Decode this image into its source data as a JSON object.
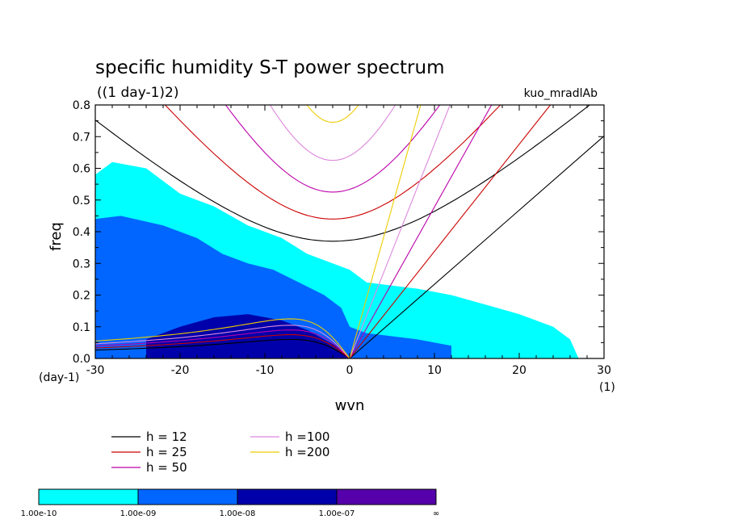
{
  "chart_data": {
    "type": "heatmap",
    "title": "specific humidity S-T power spectrum",
    "subtitle": "((1 day-1)2)",
    "tag": "kuo_mradlAb",
    "xlabel": "wvn",
    "ylabel": "freq",
    "x_unit": "(1)",
    "y_unit": "(day-1)",
    "xlim": [
      -30,
      30
    ],
    "ylim": [
      0,
      0.8
    ],
    "xticks": [
      "-30",
      "-20",
      "-10",
      "0",
      "10",
      "20",
      "30"
    ],
    "yticks": [
      "0.0",
      "0.1",
      "0.2",
      "0.3",
      "0.4",
      "0.5",
      "0.6",
      "0.7",
      "0.8"
    ],
    "colorbar": {
      "colors": [
        "#00ffff",
        "#0066ff",
        "#0000aa",
        "#5500aa"
      ],
      "labels": [
        "1.00e-10",
        "1.00e-09",
        "1.00e-08",
        "1.00e-07",
        "∞"
      ]
    },
    "legend": [
      {
        "label": "h = 12",
        "color": "#000000"
      },
      {
        "label": "h = 25",
        "color": "#cc0000"
      },
      {
        "label": "h = 50",
        "color": "#bb00aa"
      },
      {
        "label": "h =100",
        "color": "#dd88dd"
      },
      {
        "label": "h =200",
        "color": "#eecc00"
      }
    ],
    "dispersion_curves": [
      {
        "h": 12,
        "color": "#000000",
        "kelvin_slope": 0.0234,
        "ig_min_freq": 0.37,
        "er_peak_freq": 0.06
      },
      {
        "h": 25,
        "color": "#cc0000",
        "kelvin_slope": 0.0338,
        "ig_min_freq": 0.44,
        "er_peak_freq": 0.075
      },
      {
        "h": 50,
        "color": "#bb00aa",
        "kelvin_slope": 0.0478,
        "ig_min_freq": 0.525,
        "er_peak_freq": 0.09
      },
      {
        "h": 100,
        "color": "#dd88dd",
        "kelvin_slope": 0.0676,
        "ig_min_freq": 0.625,
        "er_peak_freq": 0.105
      },
      {
        "h": 200,
        "color": "#eecc00",
        "kelvin_slope": 0.0955,
        "ig_min_freq": 0.745,
        "er_peak_freq": 0.125
      }
    ],
    "regions": [
      {
        "level": 1,
        "points": [
          [
            -30,
            0.0
          ],
          [
            -30,
            0.58
          ],
          [
            -28,
            0.62
          ],
          [
            -24,
            0.6
          ],
          [
            -20,
            0.52
          ],
          [
            -16,
            0.48
          ],
          [
            -12,
            0.42
          ],
          [
            -8,
            0.38
          ],
          [
            -5,
            0.33
          ],
          [
            -2,
            0.3
          ],
          [
            0,
            0.28
          ],
          [
            2,
            0.24
          ],
          [
            5,
            0.23
          ],
          [
            8,
            0.22
          ],
          [
            12,
            0.2
          ],
          [
            16,
            0.17
          ],
          [
            20,
            0.14
          ],
          [
            24,
            0.1
          ],
          [
            26,
            0.06
          ],
          [
            27,
            0.0
          ]
        ]
      },
      {
        "level": 2,
        "points": [
          [
            -30,
            0.0
          ],
          [
            -30,
            0.44
          ],
          [
            -27,
            0.45
          ],
          [
            -22,
            0.42
          ],
          [
            -18,
            0.38
          ],
          [
            -15,
            0.33
          ],
          [
            -12,
            0.3
          ],
          [
            -9,
            0.28
          ],
          [
            -6,
            0.24
          ],
          [
            -3,
            0.2
          ],
          [
            -1,
            0.16
          ],
          [
            0,
            0.1
          ],
          [
            2,
            0.08
          ],
          [
            5,
            0.07
          ],
          [
            8,
            0.06
          ],
          [
            12,
            0.04
          ],
          [
            12,
            0.0
          ]
        ]
      },
      {
        "level": 3,
        "points": [
          [
            -24,
            0.0
          ],
          [
            -24,
            0.06
          ],
          [
            -20,
            0.1
          ],
          [
            -16,
            0.13
          ],
          [
            -12,
            0.14
          ],
          [
            -8,
            0.12
          ],
          [
            -5,
            0.09
          ],
          [
            -3,
            0.06
          ],
          [
            -1,
            0.03
          ],
          [
            0,
            0.0
          ]
        ]
      }
    ]
  }
}
